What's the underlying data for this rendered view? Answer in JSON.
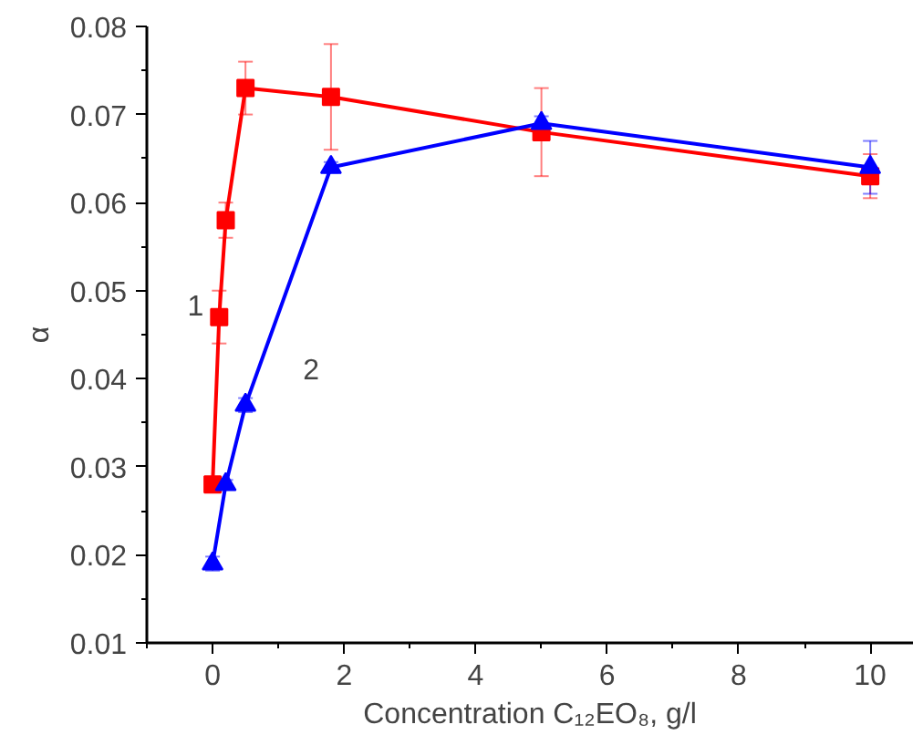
{
  "chart_data": {
    "type": "line",
    "xlabel": "Concentration C₁₂EO₈, g/l",
    "ylabel": "α",
    "xlim": [
      -1,
      10.65
    ],
    "ylim": [
      0.01,
      0.08
    ],
    "xticks": [
      {
        "value": -1,
        "label": null
      },
      0,
      {
        "value": 1,
        "label": null
      },
      2,
      {
        "value": 3,
        "label": null
      },
      4,
      {
        "value": 5,
        "label": null
      },
      6,
      {
        "value": 7,
        "label": null
      },
      8,
      {
        "value": 9,
        "label": null
      },
      10
    ],
    "yticks": [
      {
        "value": 0.01,
        "label": "0.01"
      },
      {
        "value": 0.015,
        "label": null
      },
      {
        "value": 0.02,
        "label": "0.02"
      },
      {
        "value": 0.025,
        "label": null
      },
      {
        "value": 0.03,
        "label": "0.03"
      },
      {
        "value": 0.035,
        "label": null
      },
      {
        "value": 0.04,
        "label": "0.04"
      },
      {
        "value": 0.045,
        "label": null
      },
      {
        "value": 0.05,
        "label": "0.05"
      },
      {
        "value": 0.055,
        "label": null
      },
      {
        "value": 0.06,
        "label": "0.06"
      },
      {
        "value": 0.065,
        "label": null
      },
      {
        "value": 0.07,
        "label": "0.07"
      },
      {
        "value": 0.075,
        "label": null
      },
      {
        "value": 0.08,
        "label": "0.08"
      }
    ],
    "grid": false,
    "line_style": "solid",
    "series": [
      {
        "color": "#ff0000",
        "marker": "square",
        "x": [
          0,
          0.1,
          0.2,
          0.5,
          1.8,
          5,
          10
        ],
        "values": [
          0.028,
          0.047,
          0.058,
          0.073,
          0.072,
          0.068,
          0.063
        ],
        "errors": [
          0.0005,
          0.003,
          0.002,
          0.003,
          0.006,
          0.005,
          0.0025
        ]
      },
      {
        "color": "#0000ff",
        "marker": "triangle",
        "x": [
          0,
          0.2,
          0.5,
          1.8,
          5,
          10
        ],
        "values": [
          0.019,
          0.028,
          0.037,
          0.064,
          0.069,
          0.064
        ],
        "errors": [
          0.0008,
          0.0005,
          0.0008,
          0.0006,
          0.0008,
          0.003
        ]
      }
    ],
    "annotations": [
      "1",
      "2"
    ]
  }
}
